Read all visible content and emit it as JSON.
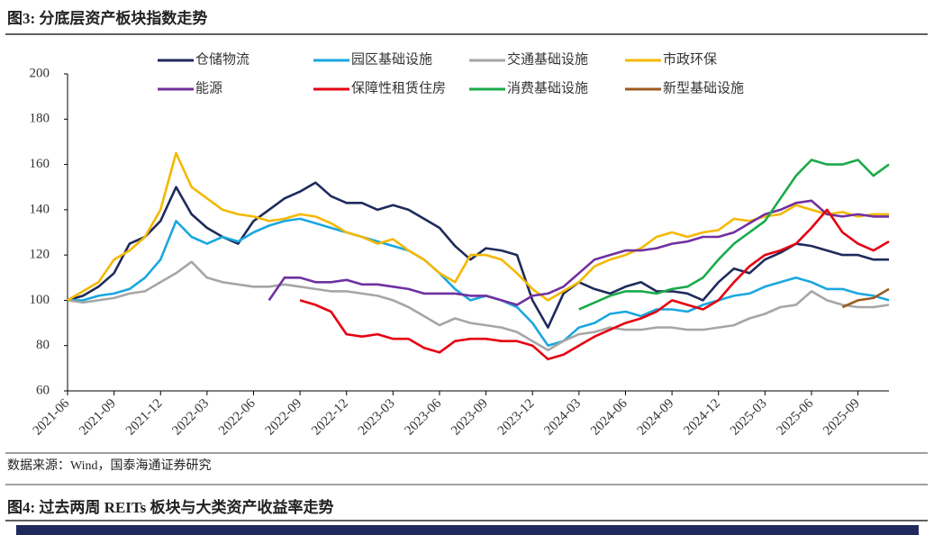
{
  "chart_data": {
    "type": "line",
    "title": "图3: 分底层资产板块指数走势",
    "source": "数据来源：Wind，国泰海通证券研究",
    "categories": [
      "2021-06",
      null,
      null,
      "2021-09",
      null,
      null,
      "2021-12",
      null,
      null,
      "2022-03",
      null,
      null,
      "2022-06",
      null,
      null,
      "2022-09",
      null,
      null,
      "2022-12",
      null,
      null,
      "2023-03",
      null,
      null,
      "2023-06",
      null,
      null,
      "2023-09",
      null,
      null,
      "2023-12",
      null,
      null,
      "2024-03",
      null,
      null,
      "2024-06",
      null,
      null,
      "2024-09",
      null,
      null,
      "2024-12",
      null,
      null,
      "2025-03",
      null,
      null,
      "2025-06",
      null,
      null,
      "2025-09",
      null,
      null
    ],
    "ylim": [
      60,
      200
    ],
    "yticks": [
      60,
      80,
      100,
      120,
      140,
      160,
      180,
      200
    ],
    "grid": false,
    "series": [
      {
        "name": "仓储物流",
        "color": "#1f2a5c",
        "values": [
          100,
          102,
          106,
          112,
          125,
          128,
          135,
          150,
          138,
          132,
          128,
          125,
          135,
          140,
          145,
          148,
          152,
          146,
          143,
          143,
          140,
          142,
          140,
          136,
          132,
          124,
          118,
          123,
          122,
          120,
          100,
          88,
          103,
          108,
          105,
          103,
          106,
          108,
          104,
          104,
          103,
          100,
          108,
          114,
          112,
          118,
          121,
          125,
          124,
          122,
          120,
          120,
          118,
          118
        ]
      },
      {
        "name": "园区基础设施",
        "color": "#1aa7e0",
        "values": [
          100,
          100,
          102,
          103,
          105,
          110,
          118,
          135,
          128,
          125,
          128,
          126,
          130,
          133,
          135,
          136,
          134,
          132,
          130,
          128,
          126,
          124,
          122,
          118,
          112,
          105,
          100,
          102,
          100,
          97,
          90,
          80,
          82,
          88,
          90,
          94,
          95,
          93,
          96,
          96,
          95,
          98,
          100,
          102,
          103,
          106,
          108,
          110,
          108,
          105,
          105,
          103,
          102,
          100
        ]
      },
      {
        "name": "交通基础设施",
        "color": "#a6a6a6",
        "values": [
          100,
          99,
          100,
          101,
          103,
          104,
          108,
          112,
          117,
          110,
          108,
          107,
          106,
          106,
          107,
          106,
          105,
          104,
          104,
          103,
          102,
          100,
          97,
          93,
          89,
          92,
          90,
          89,
          88,
          86,
          82,
          78,
          82,
          85,
          86,
          88,
          87,
          87,
          88,
          88,
          87,
          87,
          88,
          89,
          92,
          94,
          97,
          98,
          104,
          100,
          98,
          97,
          97,
          98
        ]
      },
      {
        "name": "市政环保",
        "color": "#f5b800",
        "values": [
          100,
          104,
          108,
          118,
          122,
          128,
          140,
          165,
          150,
          145,
          140,
          138,
          137,
          135,
          136,
          138,
          137,
          134,
          130,
          128,
          125,
          127,
          122,
          118,
          112,
          108,
          120,
          120,
          118,
          112,
          105,
          100,
          104,
          108,
          115,
          118,
          120,
          123,
          128,
          130,
          128,
          130,
          131,
          136,
          135,
          137,
          138,
          142,
          140,
          138,
          139,
          137,
          138,
          138
        ]
      },
      {
        "name": "能源",
        "color": "#7030a0",
        "values": [
          null,
          null,
          null,
          null,
          null,
          null,
          null,
          null,
          null,
          null,
          null,
          null,
          null,
          100,
          110,
          110,
          108,
          108,
          109,
          107,
          107,
          106,
          105,
          103,
          103,
          103,
          102,
          102,
          100,
          98,
          102,
          103,
          106,
          112,
          118,
          120,
          122,
          122,
          123,
          125,
          126,
          128,
          128,
          130,
          134,
          138,
          140,
          143,
          144,
          138,
          137,
          138,
          137,
          137
        ]
      },
      {
        "name": "保障性租赁住房",
        "color": "#e60012",
        "values": [
          null,
          null,
          null,
          null,
          null,
          null,
          null,
          null,
          null,
          null,
          null,
          null,
          null,
          null,
          null,
          100,
          98,
          95,
          85,
          84,
          85,
          83,
          83,
          79,
          77,
          82,
          83,
          83,
          82,
          82,
          80,
          74,
          76,
          80,
          84,
          87,
          90,
          92,
          95,
          100,
          98,
          96,
          100,
          108,
          115,
          120,
          122,
          125,
          132,
          140,
          130,
          125,
          122,
          126
        ]
      },
      {
        "name": "消费基础设施",
        "color": "#1aaa4a",
        "values": [
          null,
          null,
          null,
          null,
          null,
          null,
          null,
          null,
          null,
          null,
          null,
          null,
          null,
          null,
          null,
          null,
          null,
          null,
          null,
          null,
          null,
          null,
          null,
          null,
          null,
          null,
          null,
          null,
          null,
          null,
          null,
          null,
          null,
          96,
          99,
          102,
          104,
          104,
          103,
          105,
          106,
          110,
          118,
          125,
          130,
          135,
          145,
          155,
          162,
          160,
          160,
          162,
          155,
          160
        ]
      },
      {
        "name": "新型基础设施",
        "color": "#9c5a1e",
        "values": [
          null,
          null,
          null,
          null,
          null,
          null,
          null,
          null,
          null,
          null,
          null,
          null,
          null,
          null,
          null,
          null,
          null,
          null,
          null,
          null,
          null,
          null,
          null,
          null,
          null,
          null,
          null,
          null,
          null,
          null,
          null,
          null,
          null,
          null,
          null,
          null,
          null,
          null,
          null,
          null,
          null,
          null,
          null,
          null,
          null,
          null,
          null,
          null,
          null,
          null,
          97,
          100,
          101,
          105
        ]
      }
    ]
  },
  "figure4": {
    "title": "图4: 过去两周 REITs 板块与大类资产收益率走势"
  }
}
